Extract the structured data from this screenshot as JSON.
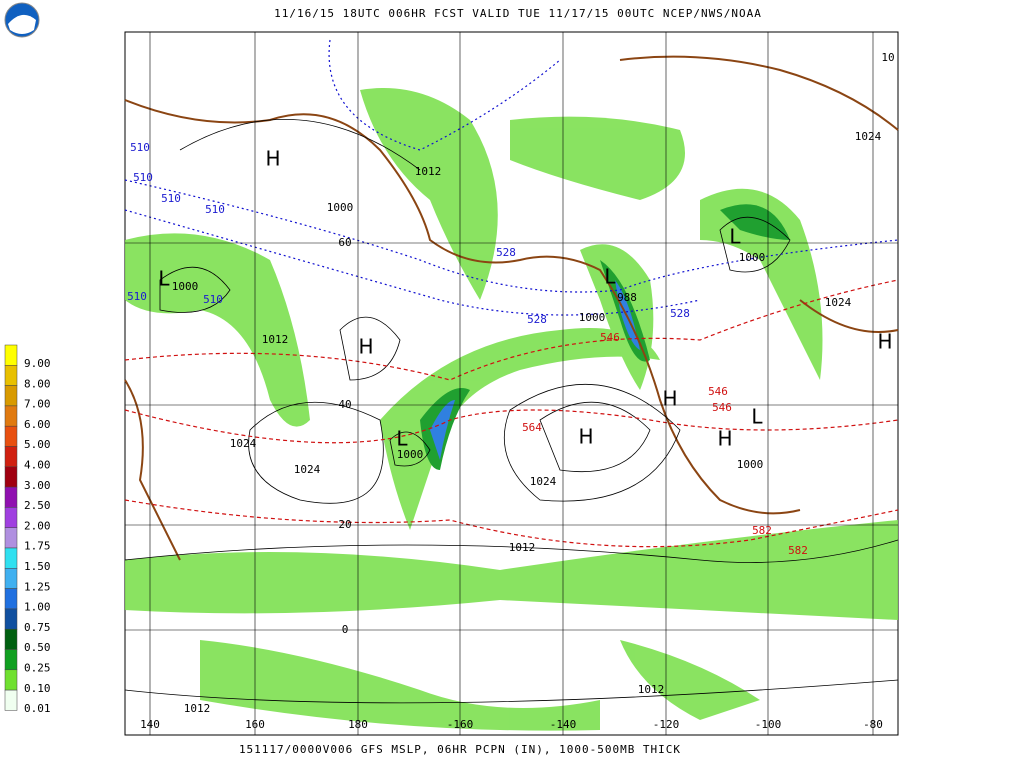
{
  "header": "11/16/15 18UTC  006HR  FCST VALID TUE 11/17/15 00UTC  NCEP/NWS/NOAA",
  "footer": "151117/0000V006 GFS MSLP, 06HR PCPN (IN), 1000-500MB THICK",
  "legend": {
    "labels": [
      "9.00",
      "8.00",
      "7.00",
      "6.00",
      "5.00",
      "4.00",
      "3.00",
      "2.50",
      "2.00",
      "1.75",
      "1.50",
      "1.25",
      "1.00",
      "0.75",
      "0.50",
      "0.25",
      "0.10",
      "0.01"
    ],
    "colors": [
      "#ffff00",
      "#e8c000",
      "#d89a00",
      "#e07a10",
      "#e85010",
      "#d02010",
      "#a00010",
      "#9010b0",
      "#a040e0",
      "#b090e0",
      "#30e0f0",
      "#40b0f0",
      "#2070e0",
      "#1050a0",
      "#006010",
      "#10a020",
      "#70e030",
      "#f0fff0"
    ]
  },
  "longitudes": [
    "140",
    "160",
    "180",
    "-160",
    "-140",
    "-120",
    "-100",
    "-80"
  ],
  "latitudes": [
    "60",
    "40",
    "20",
    "0"
  ],
  "pressure_labels": [
    "1012",
    "1000",
    "1024",
    "1024",
    "1012",
    "1000",
    "988",
    "1000",
    "1024",
    "1000",
    "1024",
    "1000",
    "1012",
    "1012",
    "1012",
    "1000",
    "1024",
    "10"
  ],
  "thickness_labels": [
    "510",
    "510",
    "510",
    "510",
    "510",
    "510",
    "528",
    "528",
    "528",
    "546",
    "546",
    "546",
    "564",
    "582",
    "582"
  ],
  "centers": [
    "H",
    "L",
    "H",
    "L",
    "L",
    "H",
    "L",
    "H",
    "L",
    "H",
    "H"
  ]
}
